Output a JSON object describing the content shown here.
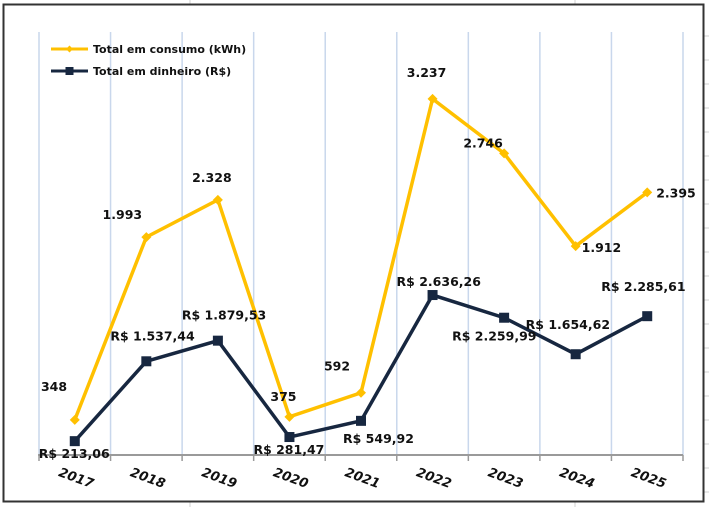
{
  "chart_data": {
    "type": "line",
    "title": "",
    "xlabel": "",
    "ylabel": "",
    "categories": [
      "2017",
      "2018",
      "2019",
      "2020",
      "2021",
      "2022",
      "2023",
      "2024",
      "2025"
    ],
    "grid": "vertical",
    "legend_position": "top-left",
    "series": [
      {
        "name": "Total em consumo (kWh)",
        "color": "#FFC000",
        "marker": "diamond",
        "axis": "primary",
        "values": [
          348,
          1993,
          2328,
          375,
          592,
          3237,
          2746,
          1912,
          2395
        ],
        "labels": [
          "348",
          "1.993",
          "2.328",
          "375",
          "592",
          "3.237",
          "2.746",
          "1.912",
          "2.395"
        ]
      },
      {
        "name": "Total em dinheiro (R$)",
        "color": "#172740",
        "marker": "square",
        "axis": "secondary",
        "values": [
          213.06,
          1537.44,
          1879.53,
          281.47,
          549.92,
          2636.26,
          2259.99,
          1654.62,
          2285.61
        ],
        "labels": [
          "R$ 213,06",
          "R$ 1.537,44",
          "R$ 1.879,53",
          "R$ 281,47",
          "R$ 549,92",
          "R$ 2.636,26",
          "R$ 2.259,99",
          "R$ 1.654,62",
          "R$ 2.285,61"
        ]
      }
    ],
    "ylim_primary": [
      0,
      3800
    ],
    "ylim_secondary": [
      0,
      7000
    ]
  }
}
